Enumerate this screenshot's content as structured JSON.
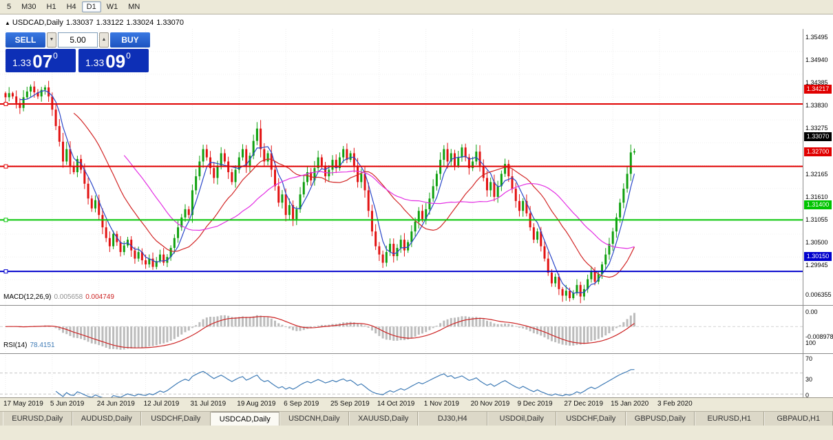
{
  "toolbar": {
    "timeframes": [
      "5",
      "M30",
      "H1",
      "H4",
      "D1",
      "W1",
      "MN"
    ],
    "active": "D1"
  },
  "chart_header": {
    "marker": "▲",
    "symbol": "USDCAD,Daily",
    "open": "1.33037",
    "high": "1.33122",
    "low": "1.33024",
    "close": "1.33070"
  },
  "trade_panel": {
    "sell_label": "SELL",
    "buy_label": "BUY",
    "lot_value": "5.00",
    "spinner_down_glyph": "▼",
    "spinner_up_glyph": "▲",
    "sell_price": {
      "prefix": "1.33",
      "pips": "07",
      "point": "0"
    },
    "buy_price": {
      "prefix": "1.33",
      "pips": "09",
      "point": "0"
    }
  },
  "chart_data": {
    "type": "candlestick",
    "symbol": "USDCAD",
    "timeframe": "Daily",
    "style": {
      "up_color": "#0fa00f",
      "down_color": "#e21212",
      "background": "#ffffff",
      "grid_color": "#ebebeb"
    },
    "closes": [
      1.3438,
      1.3448,
      1.344,
      1.3424,
      1.3412,
      1.3438,
      1.3452,
      1.3464,
      1.345,
      1.344,
      1.3456,
      1.3462,
      1.344,
      1.3408,
      1.3368,
      1.333,
      1.3282,
      1.3312,
      1.327,
      1.3256,
      1.3288,
      1.3262,
      1.3228,
      1.3192,
      1.3168,
      1.3188,
      1.3152,
      1.3122,
      1.3096,
      1.3076,
      1.3106,
      1.3086,
      1.3062,
      1.3078,
      1.3092,
      1.3066,
      1.3046,
      1.3062,
      1.3042,
      1.3032,
      1.3046,
      1.3026,
      1.304,
      1.3056,
      1.3036,
      1.305,
      1.3072,
      1.3096,
      1.3122,
      1.3146,
      1.3166,
      1.3152,
      1.3212,
      1.3246,
      1.3282,
      1.3312,
      1.3292,
      1.3266,
      1.3242,
      1.3272,
      1.3302,
      1.3282,
      1.3256,
      1.3232,
      1.3262,
      1.3292,
      1.3312,
      1.3272,
      1.3296,
      1.3332,
      1.3362,
      1.3312,
      1.3282,
      1.3302,
      1.3262,
      1.3222,
      1.3182,
      1.3202,
      1.3152,
      1.3176,
      1.3142,
      1.3166,
      1.3202,
      1.3232,
      1.3256,
      1.3236,
      1.3266,
      1.3292,
      1.3272,
      1.3246,
      1.3262,
      1.3286,
      1.3266,
      1.3292,
      1.3312,
      1.3286,
      1.3302,
      1.3272,
      1.3232,
      1.3252,
      1.3212,
      1.3162,
      1.3112,
      1.3076,
      1.3056,
      1.3036,
      1.3062,
      1.3082,
      1.3052,
      1.3072,
      1.3092,
      1.3066,
      1.3086,
      1.3112,
      1.3136,
      1.3162,
      1.3142,
      1.3166,
      1.3192,
      1.3222,
      1.3252,
      1.3286,
      1.3312,
      1.3282,
      1.3302,
      1.3272,
      1.3292,
      1.3316,
      1.3292,
      1.3266,
      1.3282,
      1.3306,
      1.3272,
      1.3242,
      1.3212,
      1.3232,
      1.3196,
      1.3222,
      1.3252,
      1.3276,
      1.3246,
      1.3216,
      1.3186,
      1.3162,
      1.3186,
      1.3156,
      1.3122,
      1.3092,
      1.3112,
      1.3076,
      1.3046,
      1.3012,
      1.2986,
      1.3002,
      1.2972,
      1.2956,
      1.2968,
      1.295,
      1.2962,
      1.2982,
      1.2954,
      1.2972,
      1.2996,
      1.3014,
      1.299,
      1.3008,
      1.3032,
      1.3056,
      1.3082,
      1.3112,
      1.3146,
      1.3182,
      1.3216,
      1.3252,
      1.3304,
      1.3307
    ],
    "moving_averages": [
      {
        "period": 5,
        "color": "#2946c8"
      },
      {
        "period": 20,
        "color": "#d22424"
      },
      {
        "period": 34,
        "color": "#e32ee3"
      }
    ],
    "hlines": [
      {
        "price": 1.34217,
        "label": "1.34217",
        "color": "#e00000"
      },
      {
        "price": 1.327,
        "label": "1.32700",
        "color": "#e00000"
      },
      {
        "price": 1.314,
        "label": "1.31400",
        "color": "#00c400"
      },
      {
        "price": 1.3015,
        "label": "1.30150",
        "color": "#0000cc"
      }
    ],
    "current_price": {
      "value": 1.3307,
      "label": "1.33070",
      "bg": "#000000"
    },
    "y_ticks": [
      "1.35495",
      "1.34940",
      "1.34385",
      "1.33830",
      "1.33275",
      "1.32720",
      "1.32165",
      "1.31610",
      "1.31055",
      "1.30500",
      "1.29945"
    ],
    "x_ticks": [
      "17 May 2019",
      "5 Jun 2019",
      "24 Jun 2019",
      "12 Jul 2019",
      "31 Jul 2019",
      "19 Aug 2019",
      "6 Sep 2019",
      "25 Sep 2019",
      "14 Oct 2019",
      "1 Nov 2019",
      "20 Nov 2019",
      "9 Dec 2019",
      "27 Dec 2019",
      "15 Jan 2020",
      "3 Feb 2020"
    ],
    "indicators": {
      "macd": {
        "label": "MACD(12,26,9)",
        "value_main": "0.005658",
        "value_signal": "0.004749",
        "fast": 12,
        "slow": 26,
        "signal": 9,
        "axis": [
          "0.006355",
          "0.00",
          "-0.008978"
        ],
        "hist_color": "#bcbcbc",
        "signal_color": "#cc2222"
      },
      "rsi": {
        "label": "RSI(14)",
        "value": "78.4151",
        "period": 14,
        "levels": [
          "100",
          "70",
          "30",
          "0"
        ],
        "line_color": "#3d7ab5"
      }
    }
  },
  "bottom_tabs": {
    "items": [
      "EURUSD,Daily",
      "AUDUSD,Daily",
      "USDCHF,Daily",
      "USDCAD,Daily",
      "USDCNH,Daily",
      "XAUUSD,Daily",
      "DJ30,H4",
      "USDOil,Daily",
      "USDCHF,Daily",
      "GBPUSD,Daily",
      "EURUSD,H1",
      "GBPAUD,H1"
    ],
    "active": "USDCAD,Daily"
  }
}
